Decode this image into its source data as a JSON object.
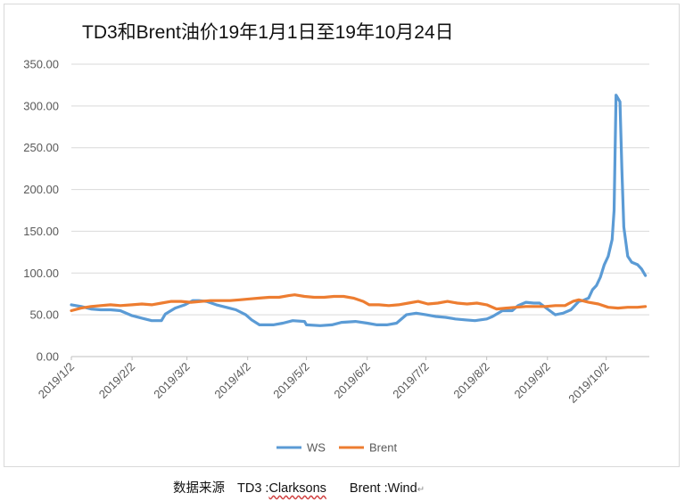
{
  "title": "TD3和Brent油价19年1月1日至19年10月24日",
  "source": {
    "prefix": "数据来源",
    "td3_label": "TD3 :",
    "td3_value": "Clarksons",
    "brent_label": "Brent : ",
    "brent_value": "Wind",
    "mark": "↵"
  },
  "colors": {
    "ws": "#5b9bd5",
    "brent": "#ed7d31",
    "grid": "#d9d9d9"
  },
  "chart_data": {
    "type": "line",
    "title": "TD3和Brent油价19年1月1日至19年10月24日",
    "xlabel": "",
    "ylabel": "",
    "ylim": [
      0,
      350
    ],
    "yticks": [
      "0.00",
      "50.00",
      "100.00",
      "150.00",
      "200.00",
      "250.00",
      "300.00",
      "350.00"
    ],
    "xticks": [
      "2019/1/2",
      "2019/2/2",
      "2019/3/2",
      "2019/4/2",
      "2019/5/2",
      "2019/6/2",
      "2019/7/2",
      "2019/8/2",
      "2019/9/2",
      "2019/10/2"
    ],
    "xlim": [
      "2019-01-02",
      "2019-10-24"
    ],
    "grid": "horizontal",
    "legend": "bottom",
    "series": [
      {
        "name": "WS",
        "points": [
          [
            "2019-01-02",
            62
          ],
          [
            "2019-01-07",
            60
          ],
          [
            "2019-01-12",
            57
          ],
          [
            "2019-01-17",
            56
          ],
          [
            "2019-01-22",
            56
          ],
          [
            "2019-01-27",
            55
          ],
          [
            "2019-02-02",
            49
          ],
          [
            "2019-02-07",
            46
          ],
          [
            "2019-02-12",
            43
          ],
          [
            "2019-02-17",
            43
          ],
          [
            "2019-02-19",
            51
          ],
          [
            "2019-02-24",
            58
          ],
          [
            "2019-03-01",
            62
          ],
          [
            "2019-03-05",
            67
          ],
          [
            "2019-03-08",
            67
          ],
          [
            "2019-03-12",
            66
          ],
          [
            "2019-03-17",
            62
          ],
          [
            "2019-03-22",
            59
          ],
          [
            "2019-03-27",
            56
          ],
          [
            "2019-04-01",
            50
          ],
          [
            "2019-04-04",
            44
          ],
          [
            "2019-04-08",
            38
          ],
          [
            "2019-04-15",
            38
          ],
          [
            "2019-04-20",
            40
          ],
          [
            "2019-04-25",
            43
          ],
          [
            "2019-05-01",
            42
          ],
          [
            "2019-05-02",
            38
          ],
          [
            "2019-05-09",
            37
          ],
          [
            "2019-05-15",
            38
          ],
          [
            "2019-05-20",
            41
          ],
          [
            "2019-05-27",
            42
          ],
          [
            "2019-06-02",
            40
          ],
          [
            "2019-06-07",
            38
          ],
          [
            "2019-06-12",
            38
          ],
          [
            "2019-06-17",
            40
          ],
          [
            "2019-06-22",
            50
          ],
          [
            "2019-06-27",
            52
          ],
          [
            "2019-07-02",
            50
          ],
          [
            "2019-07-07",
            48
          ],
          [
            "2019-07-12",
            47
          ],
          [
            "2019-07-17",
            45
          ],
          [
            "2019-07-22",
            44
          ],
          [
            "2019-07-27",
            43
          ],
          [
            "2019-08-02",
            45
          ],
          [
            "2019-08-05",
            48
          ],
          [
            "2019-08-10",
            55
          ],
          [
            "2019-08-15",
            55
          ],
          [
            "2019-08-18",
            61
          ],
          [
            "2019-08-22",
            65
          ],
          [
            "2019-08-26",
            64
          ],
          [
            "2019-08-29",
            64
          ],
          [
            "2019-09-02",
            57
          ],
          [
            "2019-09-06",
            50
          ],
          [
            "2019-09-10",
            52
          ],
          [
            "2019-09-14",
            56
          ],
          [
            "2019-09-18",
            66
          ],
          [
            "2019-09-20",
            67
          ],
          [
            "2019-09-23",
            70
          ],
          [
            "2019-09-25",
            80
          ],
          [
            "2019-09-27",
            85
          ],
          [
            "2019-09-29",
            95
          ],
          [
            "2019-10-01",
            110
          ],
          [
            "2019-10-03",
            120
          ],
          [
            "2019-10-05",
            140
          ],
          [
            "2019-10-06",
            175
          ],
          [
            "2019-10-07",
            313
          ],
          [
            "2019-10-09",
            305
          ],
          [
            "2019-10-10",
            225
          ],
          [
            "2019-10-11",
            155
          ],
          [
            "2019-10-13",
            120
          ],
          [
            "2019-10-15",
            113
          ],
          [
            "2019-10-18",
            110
          ],
          [
            "2019-10-20",
            105
          ],
          [
            "2019-10-22",
            97
          ]
        ]
      },
      {
        "name": "Brent",
        "points": [
          [
            "2019-01-02",
            55
          ],
          [
            "2019-01-07",
            58
          ],
          [
            "2019-01-12",
            60
          ],
          [
            "2019-01-17",
            61
          ],
          [
            "2019-01-22",
            62
          ],
          [
            "2019-01-27",
            61
          ],
          [
            "2019-02-02",
            62
          ],
          [
            "2019-02-07",
            63
          ],
          [
            "2019-02-12",
            62
          ],
          [
            "2019-02-17",
            64
          ],
          [
            "2019-02-22",
            66
          ],
          [
            "2019-02-27",
            66
          ],
          [
            "2019-03-04",
            65
          ],
          [
            "2019-03-09",
            66
          ],
          [
            "2019-03-14",
            67
          ],
          [
            "2019-03-19",
            67
          ],
          [
            "2019-03-24",
            67
          ],
          [
            "2019-03-29",
            68
          ],
          [
            "2019-04-03",
            69
          ],
          [
            "2019-04-08",
            70
          ],
          [
            "2019-04-13",
            71
          ],
          [
            "2019-04-18",
            71
          ],
          [
            "2019-04-23",
            73
          ],
          [
            "2019-04-26",
            74
          ],
          [
            "2019-05-01",
            72
          ],
          [
            "2019-05-06",
            71
          ],
          [
            "2019-05-11",
            71
          ],
          [
            "2019-05-16",
            72
          ],
          [
            "2019-05-21",
            72
          ],
          [
            "2019-05-26",
            70
          ],
          [
            "2019-05-31",
            66
          ],
          [
            "2019-06-03",
            62
          ],
          [
            "2019-06-08",
            62
          ],
          [
            "2019-06-13",
            61
          ],
          [
            "2019-06-18",
            62
          ],
          [
            "2019-06-23",
            64
          ],
          [
            "2019-06-28",
            66
          ],
          [
            "2019-07-03",
            63
          ],
          [
            "2019-07-08",
            64
          ],
          [
            "2019-07-13",
            66
          ],
          [
            "2019-07-18",
            64
          ],
          [
            "2019-07-23",
            63
          ],
          [
            "2019-07-28",
            64
          ],
          [
            "2019-08-02",
            62
          ],
          [
            "2019-08-07",
            57
          ],
          [
            "2019-08-12",
            58
          ],
          [
            "2019-08-17",
            59
          ],
          [
            "2019-08-22",
            60
          ],
          [
            "2019-08-27",
            60
          ],
          [
            "2019-09-01",
            60
          ],
          [
            "2019-09-06",
            61
          ],
          [
            "2019-09-11",
            61
          ],
          [
            "2019-09-15",
            66
          ],
          [
            "2019-09-18",
            68
          ],
          [
            "2019-09-23",
            65
          ],
          [
            "2019-09-28",
            63
          ],
          [
            "2019-10-03",
            59
          ],
          [
            "2019-10-08",
            58
          ],
          [
            "2019-10-13",
            59
          ],
          [
            "2019-10-18",
            59
          ],
          [
            "2019-10-22",
            60
          ]
        ]
      }
    ]
  }
}
